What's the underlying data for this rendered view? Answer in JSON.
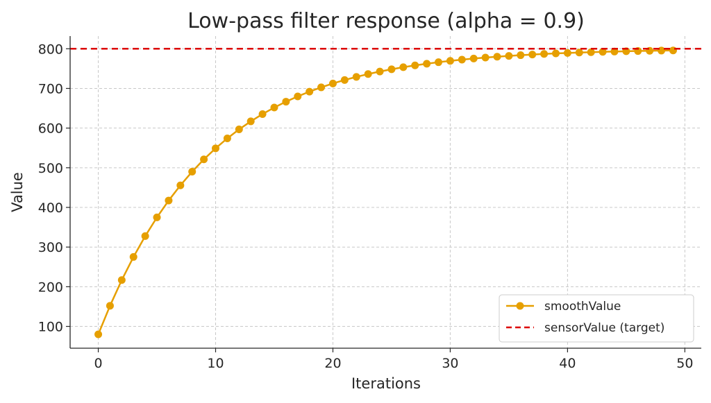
{
  "chart_data": {
    "type": "line",
    "title": "Low-pass filter response (alpha = 0.9)",
    "xlabel": "Iterations",
    "ylabel": "Value",
    "xlim": [
      -2.4,
      51.4
    ],
    "ylim": [
      45,
      832
    ],
    "xticks": [
      0,
      10,
      20,
      30,
      40,
      50
    ],
    "yticks": [
      100,
      200,
      300,
      400,
      500,
      600,
      700,
      800
    ],
    "grid": true,
    "legend_position": "lower-right",
    "series": [
      {
        "name": "smoothValue",
        "color": "#e69f00",
        "marker": "circle",
        "x": [
          0,
          1,
          2,
          3,
          4,
          5,
          6,
          7,
          8,
          9,
          10,
          11,
          12,
          13,
          14,
          15,
          16,
          17,
          18,
          19,
          20,
          21,
          22,
          23,
          24,
          25,
          26,
          27,
          28,
          29,
          30,
          31,
          32,
          33,
          34,
          35,
          36,
          37,
          38,
          39,
          40,
          41,
          42,
          43,
          44,
          45,
          46,
          47,
          48,
          49
        ],
        "values": [
          80.0,
          152.0,
          216.8,
          275.1,
          327.6,
          374.9,
          417.4,
          455.6,
          490.1,
          521.1,
          549.0,
          574.1,
          596.7,
          617.0,
          635.3,
          651.8,
          666.6,
          679.9,
          691.9,
          702.7,
          712.5,
          721.2,
          729.1,
          736.2,
          742.6,
          748.3,
          753.5,
          758.1,
          762.3,
          766.1,
          769.5,
          772.5,
          775.3,
          777.8,
          780.0,
          782.0,
          783.8,
          785.4,
          786.9,
          788.2,
          789.3,
          790.4,
          791.4,
          792.2,
          793.0,
          793.7,
          794.3,
          794.9,
          795.4,
          795.8
        ]
      },
      {
        "name": "sensorValue (target)",
        "color": "#dd0000",
        "style": "dashed",
        "y": 800
      }
    ]
  }
}
